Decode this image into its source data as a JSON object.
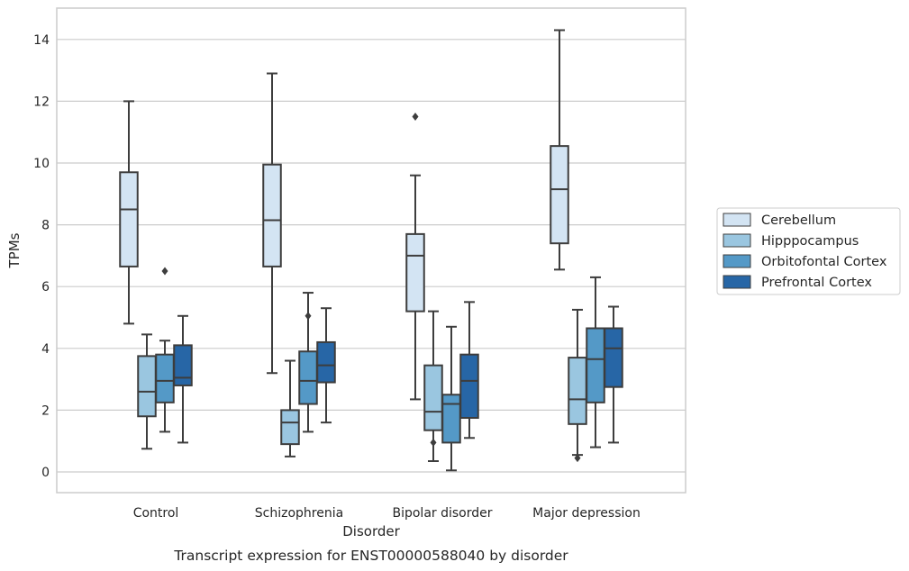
{
  "chart_data": {
    "type": "box",
    "title": "",
    "caption": "Transcript expression for ENST00000588040 by disorder",
    "xlabel": "Disorder",
    "ylabel": "TPMs",
    "ylim": [
      -0.7,
      15
    ],
    "yticks": [
      0,
      2,
      4,
      6,
      8,
      10,
      12,
      14
    ],
    "ytick_labels": [
      "0",
      "2",
      "4",
      "6",
      "8",
      "10",
      "12",
      "14"
    ],
    "grid": "horizontal",
    "legend_position": "right",
    "categories": [
      "Control",
      "Schizophrenia",
      "Bipolar disorder",
      "Major depression"
    ],
    "series": [
      {
        "name": "Cerebellum",
        "color": "#d3e4f3",
        "boxes": [
          {
            "whisker_low": 4.8,
            "q1": 6.65,
            "median": 8.5,
            "q3": 9.7,
            "whisker_high": 12.0,
            "outliers": []
          },
          {
            "whisker_low": 3.2,
            "q1": 6.65,
            "median": 8.15,
            "q3": 9.95,
            "whisker_high": 12.9,
            "outliers": []
          },
          {
            "whisker_low": 2.35,
            "q1": 5.2,
            "median": 7.0,
            "q3": 7.7,
            "whisker_high": 9.6,
            "outliers": [
              11.5
            ]
          },
          {
            "whisker_low": 6.55,
            "q1": 7.4,
            "median": 9.15,
            "q3": 10.55,
            "whisker_high": 14.3,
            "outliers": []
          }
        ]
      },
      {
        "name": "Hipppocampus",
        "color": "#9ac6e0",
        "boxes": [
          {
            "whisker_low": 0.75,
            "q1": 1.8,
            "median": 2.6,
            "q3": 3.75,
            "whisker_high": 4.45,
            "outliers": []
          },
          {
            "whisker_low": 0.5,
            "q1": 0.9,
            "median": 1.6,
            "q3": 2.0,
            "whisker_high": 3.6,
            "outliers": []
          },
          {
            "whisker_low": 0.35,
            "q1": 1.35,
            "median": 1.95,
            "q3": 3.45,
            "whisker_high": 5.2,
            "outliers": [
              0.95
            ]
          },
          {
            "whisker_low": 0.55,
            "q1": 1.55,
            "median": 2.35,
            "q3": 3.7,
            "whisker_high": 5.25,
            "outliers": [
              0.45
            ]
          }
        ]
      },
      {
        "name": "Orbitofontal Cortex",
        "color": "#5499c7",
        "boxes": [
          {
            "whisker_low": 1.3,
            "q1": 2.25,
            "median": 2.95,
            "q3": 3.8,
            "whisker_high": 4.25,
            "outliers": [
              6.5
            ]
          },
          {
            "whisker_low": 1.3,
            "q1": 2.2,
            "median": 2.95,
            "q3": 3.9,
            "whisker_high": 5.8,
            "outliers": [
              5.05
            ]
          },
          {
            "whisker_low": 0.05,
            "q1": 0.95,
            "median": 2.2,
            "q3": 2.5,
            "whisker_high": 4.7,
            "outliers": []
          },
          {
            "whisker_low": 0.8,
            "q1": 2.25,
            "median": 3.65,
            "q3": 4.65,
            "whisker_high": 6.3,
            "outliers": []
          }
        ]
      },
      {
        "name": "Prefrontal Cortex",
        "color": "#2766a6",
        "boxes": [
          {
            "whisker_low": 0.95,
            "q1": 2.8,
            "median": 3.05,
            "q3": 4.1,
            "whisker_high": 5.05,
            "outliers": []
          },
          {
            "whisker_low": 1.6,
            "q1": 2.9,
            "median": 3.45,
            "q3": 4.2,
            "whisker_high": 5.3,
            "outliers": []
          },
          {
            "whisker_low": 1.1,
            "q1": 1.75,
            "median": 2.95,
            "q3": 3.8,
            "whisker_high": 5.5,
            "outliers": []
          },
          {
            "whisker_low": 0.95,
            "q1": 2.75,
            "median": 4.0,
            "q3": 4.65,
            "whisker_high": 5.35,
            "outliers": []
          }
        ]
      }
    ]
  }
}
